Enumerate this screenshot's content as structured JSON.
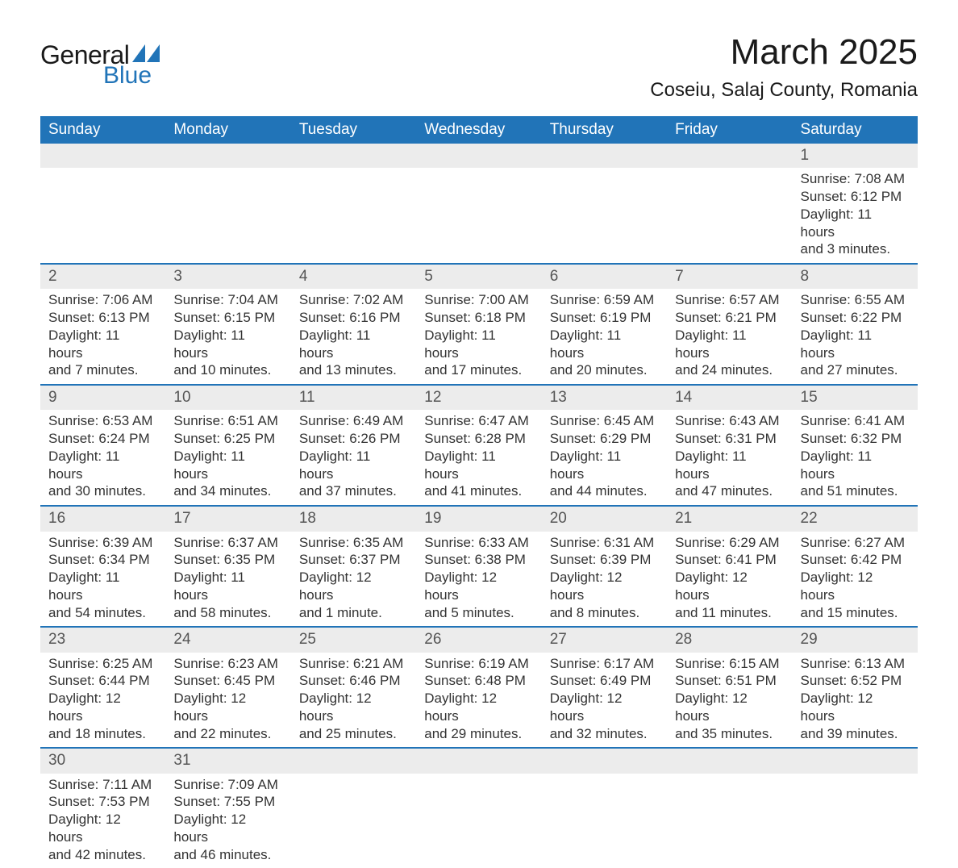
{
  "logo": {
    "general": "General",
    "blue": "Blue",
    "tri_color": "#2174b8"
  },
  "title": "March 2025",
  "location": "Coseiu, Salaj County, Romania",
  "colors": {
    "header_bg": "#2174b8",
    "header_text": "#ffffff",
    "daynum_bg": "#ececec",
    "row_divider": "#2174b8",
    "body_text": "#333333",
    "page_bg": "#ffffff"
  },
  "typography": {
    "title_fontsize": 44,
    "location_fontsize": 24,
    "weekday_fontsize": 19,
    "daynum_fontsize": 19,
    "cell_fontsize": 17,
    "font_family": "Arial"
  },
  "calendar": {
    "weekdays": [
      "Sunday",
      "Monday",
      "Tuesday",
      "Wednesday",
      "Thursday",
      "Friday",
      "Saturday"
    ],
    "weeks": [
      [
        null,
        null,
        null,
        null,
        null,
        null,
        {
          "day": "1",
          "sunrise": "Sunrise: 7:08 AM",
          "sunset": "Sunset: 6:12 PM",
          "dl1": "Daylight: 11 hours",
          "dl2": "and 3 minutes."
        }
      ],
      [
        {
          "day": "2",
          "sunrise": "Sunrise: 7:06 AM",
          "sunset": "Sunset: 6:13 PM",
          "dl1": "Daylight: 11 hours",
          "dl2": "and 7 minutes."
        },
        {
          "day": "3",
          "sunrise": "Sunrise: 7:04 AM",
          "sunset": "Sunset: 6:15 PM",
          "dl1": "Daylight: 11 hours",
          "dl2": "and 10 minutes."
        },
        {
          "day": "4",
          "sunrise": "Sunrise: 7:02 AM",
          "sunset": "Sunset: 6:16 PM",
          "dl1": "Daylight: 11 hours",
          "dl2": "and 13 minutes."
        },
        {
          "day": "5",
          "sunrise": "Sunrise: 7:00 AM",
          "sunset": "Sunset: 6:18 PM",
          "dl1": "Daylight: 11 hours",
          "dl2": "and 17 minutes."
        },
        {
          "day": "6",
          "sunrise": "Sunrise: 6:59 AM",
          "sunset": "Sunset: 6:19 PM",
          "dl1": "Daylight: 11 hours",
          "dl2": "and 20 minutes."
        },
        {
          "day": "7",
          "sunrise": "Sunrise: 6:57 AM",
          "sunset": "Sunset: 6:21 PM",
          "dl1": "Daylight: 11 hours",
          "dl2": "and 24 minutes."
        },
        {
          "day": "8",
          "sunrise": "Sunrise: 6:55 AM",
          "sunset": "Sunset: 6:22 PM",
          "dl1": "Daylight: 11 hours",
          "dl2": "and 27 minutes."
        }
      ],
      [
        {
          "day": "9",
          "sunrise": "Sunrise: 6:53 AM",
          "sunset": "Sunset: 6:24 PM",
          "dl1": "Daylight: 11 hours",
          "dl2": "and 30 minutes."
        },
        {
          "day": "10",
          "sunrise": "Sunrise: 6:51 AM",
          "sunset": "Sunset: 6:25 PM",
          "dl1": "Daylight: 11 hours",
          "dl2": "and 34 minutes."
        },
        {
          "day": "11",
          "sunrise": "Sunrise: 6:49 AM",
          "sunset": "Sunset: 6:26 PM",
          "dl1": "Daylight: 11 hours",
          "dl2": "and 37 minutes."
        },
        {
          "day": "12",
          "sunrise": "Sunrise: 6:47 AM",
          "sunset": "Sunset: 6:28 PM",
          "dl1": "Daylight: 11 hours",
          "dl2": "and 41 minutes."
        },
        {
          "day": "13",
          "sunrise": "Sunrise: 6:45 AM",
          "sunset": "Sunset: 6:29 PM",
          "dl1": "Daylight: 11 hours",
          "dl2": "and 44 minutes."
        },
        {
          "day": "14",
          "sunrise": "Sunrise: 6:43 AM",
          "sunset": "Sunset: 6:31 PM",
          "dl1": "Daylight: 11 hours",
          "dl2": "and 47 minutes."
        },
        {
          "day": "15",
          "sunrise": "Sunrise: 6:41 AM",
          "sunset": "Sunset: 6:32 PM",
          "dl1": "Daylight: 11 hours",
          "dl2": "and 51 minutes."
        }
      ],
      [
        {
          "day": "16",
          "sunrise": "Sunrise: 6:39 AM",
          "sunset": "Sunset: 6:34 PM",
          "dl1": "Daylight: 11 hours",
          "dl2": "and 54 minutes."
        },
        {
          "day": "17",
          "sunrise": "Sunrise: 6:37 AM",
          "sunset": "Sunset: 6:35 PM",
          "dl1": "Daylight: 11 hours",
          "dl2": "and 58 minutes."
        },
        {
          "day": "18",
          "sunrise": "Sunrise: 6:35 AM",
          "sunset": "Sunset: 6:37 PM",
          "dl1": "Daylight: 12 hours",
          "dl2": "and 1 minute."
        },
        {
          "day": "19",
          "sunrise": "Sunrise: 6:33 AM",
          "sunset": "Sunset: 6:38 PM",
          "dl1": "Daylight: 12 hours",
          "dl2": "and 5 minutes."
        },
        {
          "day": "20",
          "sunrise": "Sunrise: 6:31 AM",
          "sunset": "Sunset: 6:39 PM",
          "dl1": "Daylight: 12 hours",
          "dl2": "and 8 minutes."
        },
        {
          "day": "21",
          "sunrise": "Sunrise: 6:29 AM",
          "sunset": "Sunset: 6:41 PM",
          "dl1": "Daylight: 12 hours",
          "dl2": "and 11 minutes."
        },
        {
          "day": "22",
          "sunrise": "Sunrise: 6:27 AM",
          "sunset": "Sunset: 6:42 PM",
          "dl1": "Daylight: 12 hours",
          "dl2": "and 15 minutes."
        }
      ],
      [
        {
          "day": "23",
          "sunrise": "Sunrise: 6:25 AM",
          "sunset": "Sunset: 6:44 PM",
          "dl1": "Daylight: 12 hours",
          "dl2": "and 18 minutes."
        },
        {
          "day": "24",
          "sunrise": "Sunrise: 6:23 AM",
          "sunset": "Sunset: 6:45 PM",
          "dl1": "Daylight: 12 hours",
          "dl2": "and 22 minutes."
        },
        {
          "day": "25",
          "sunrise": "Sunrise: 6:21 AM",
          "sunset": "Sunset: 6:46 PM",
          "dl1": "Daylight: 12 hours",
          "dl2": "and 25 minutes."
        },
        {
          "day": "26",
          "sunrise": "Sunrise: 6:19 AM",
          "sunset": "Sunset: 6:48 PM",
          "dl1": "Daylight: 12 hours",
          "dl2": "and 29 minutes."
        },
        {
          "day": "27",
          "sunrise": "Sunrise: 6:17 AM",
          "sunset": "Sunset: 6:49 PM",
          "dl1": "Daylight: 12 hours",
          "dl2": "and 32 minutes."
        },
        {
          "day": "28",
          "sunrise": "Sunrise: 6:15 AM",
          "sunset": "Sunset: 6:51 PM",
          "dl1": "Daylight: 12 hours",
          "dl2": "and 35 minutes."
        },
        {
          "day": "29",
          "sunrise": "Sunrise: 6:13 AM",
          "sunset": "Sunset: 6:52 PM",
          "dl1": "Daylight: 12 hours",
          "dl2": "and 39 minutes."
        }
      ],
      [
        {
          "day": "30",
          "sunrise": "Sunrise: 7:11 AM",
          "sunset": "Sunset: 7:53 PM",
          "dl1": "Daylight: 12 hours",
          "dl2": "and 42 minutes."
        },
        {
          "day": "31",
          "sunrise": "Sunrise: 7:09 AM",
          "sunset": "Sunset: 7:55 PM",
          "dl1": "Daylight: 12 hours",
          "dl2": "and 46 minutes."
        },
        null,
        null,
        null,
        null,
        null
      ]
    ]
  }
}
